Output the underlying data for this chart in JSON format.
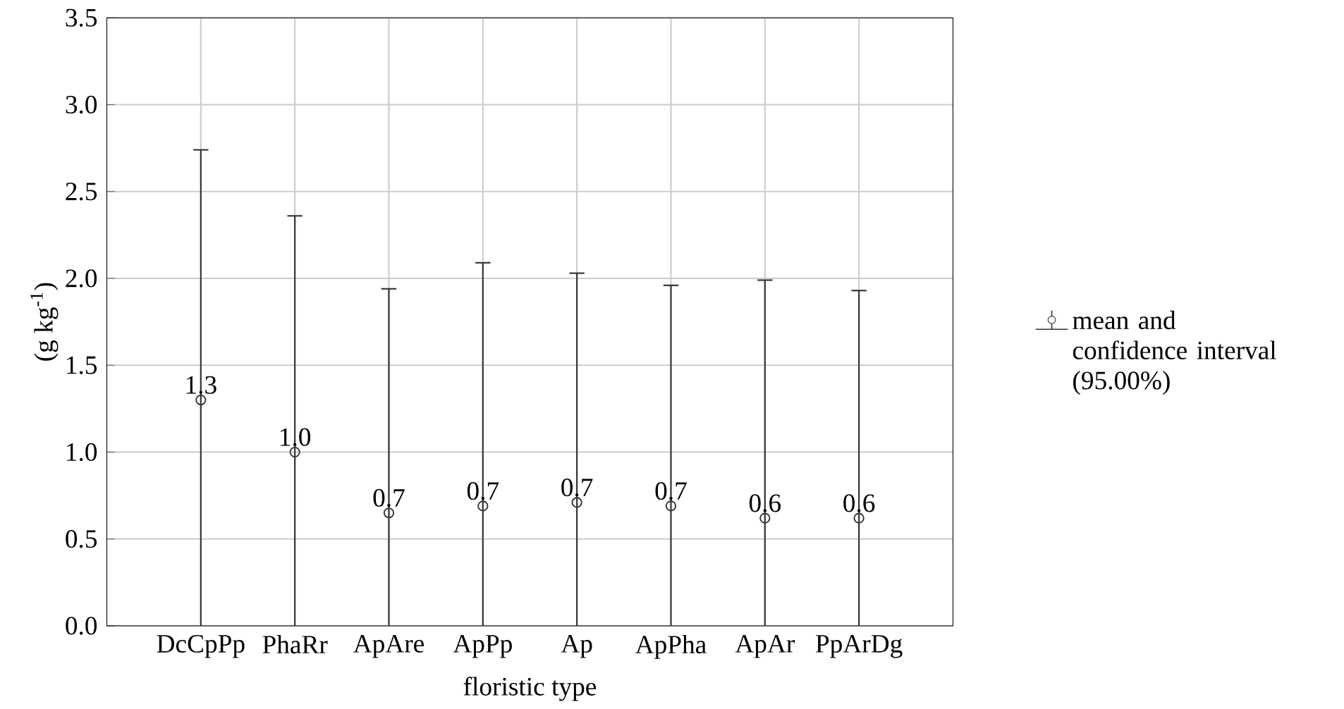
{
  "chart_data": {
    "type": "scatter",
    "xlabel": "floristic type",
    "ylabel": "(g kg$^{-1}$)",
    "categories": [
      "DcCpPp",
      "PhaRr",
      "ApAre",
      "ApPp",
      "Ap",
      "ApPha",
      "ApAr",
      "PpArDg"
    ],
    "series": [
      {
        "name": "mean and confidence interval (95.00%)",
        "color": "#333333",
        "values": [
          1.3,
          1.0,
          0.65,
          0.69,
          0.71,
          0.69,
          0.62,
          0.62
        ],
        "errors": [
          [
            0,
            2.74
          ],
          [
            0,
            2.36
          ],
          [
            0,
            1.94
          ],
          [
            0,
            2.09
          ],
          [
            0,
            2.03
          ],
          [
            0,
            1.96
          ],
          [
            0,
            1.99
          ],
          [
            0,
            1.93
          ]
        ],
        "value_labels": [
          "1.3",
          "1.0",
          "0.7",
          "0.7",
          "0.7",
          "0.7",
          "0.6",
          "0.6"
        ]
      }
    ],
    "ylim": [
      0,
      3.5
    ],
    "yticks": [
      {
        "value": 0,
        "label": "0.0"
      },
      0.5,
      {
        "value": 1,
        "label": "1.0"
      },
      1.5,
      {
        "value": 2,
        "label": "2.0"
      },
      2.5,
      {
        "value": 3,
        "label": "3.0"
      },
      3.5
    ],
    "grid": true,
    "legend": "right",
    "marker": "circle"
  }
}
